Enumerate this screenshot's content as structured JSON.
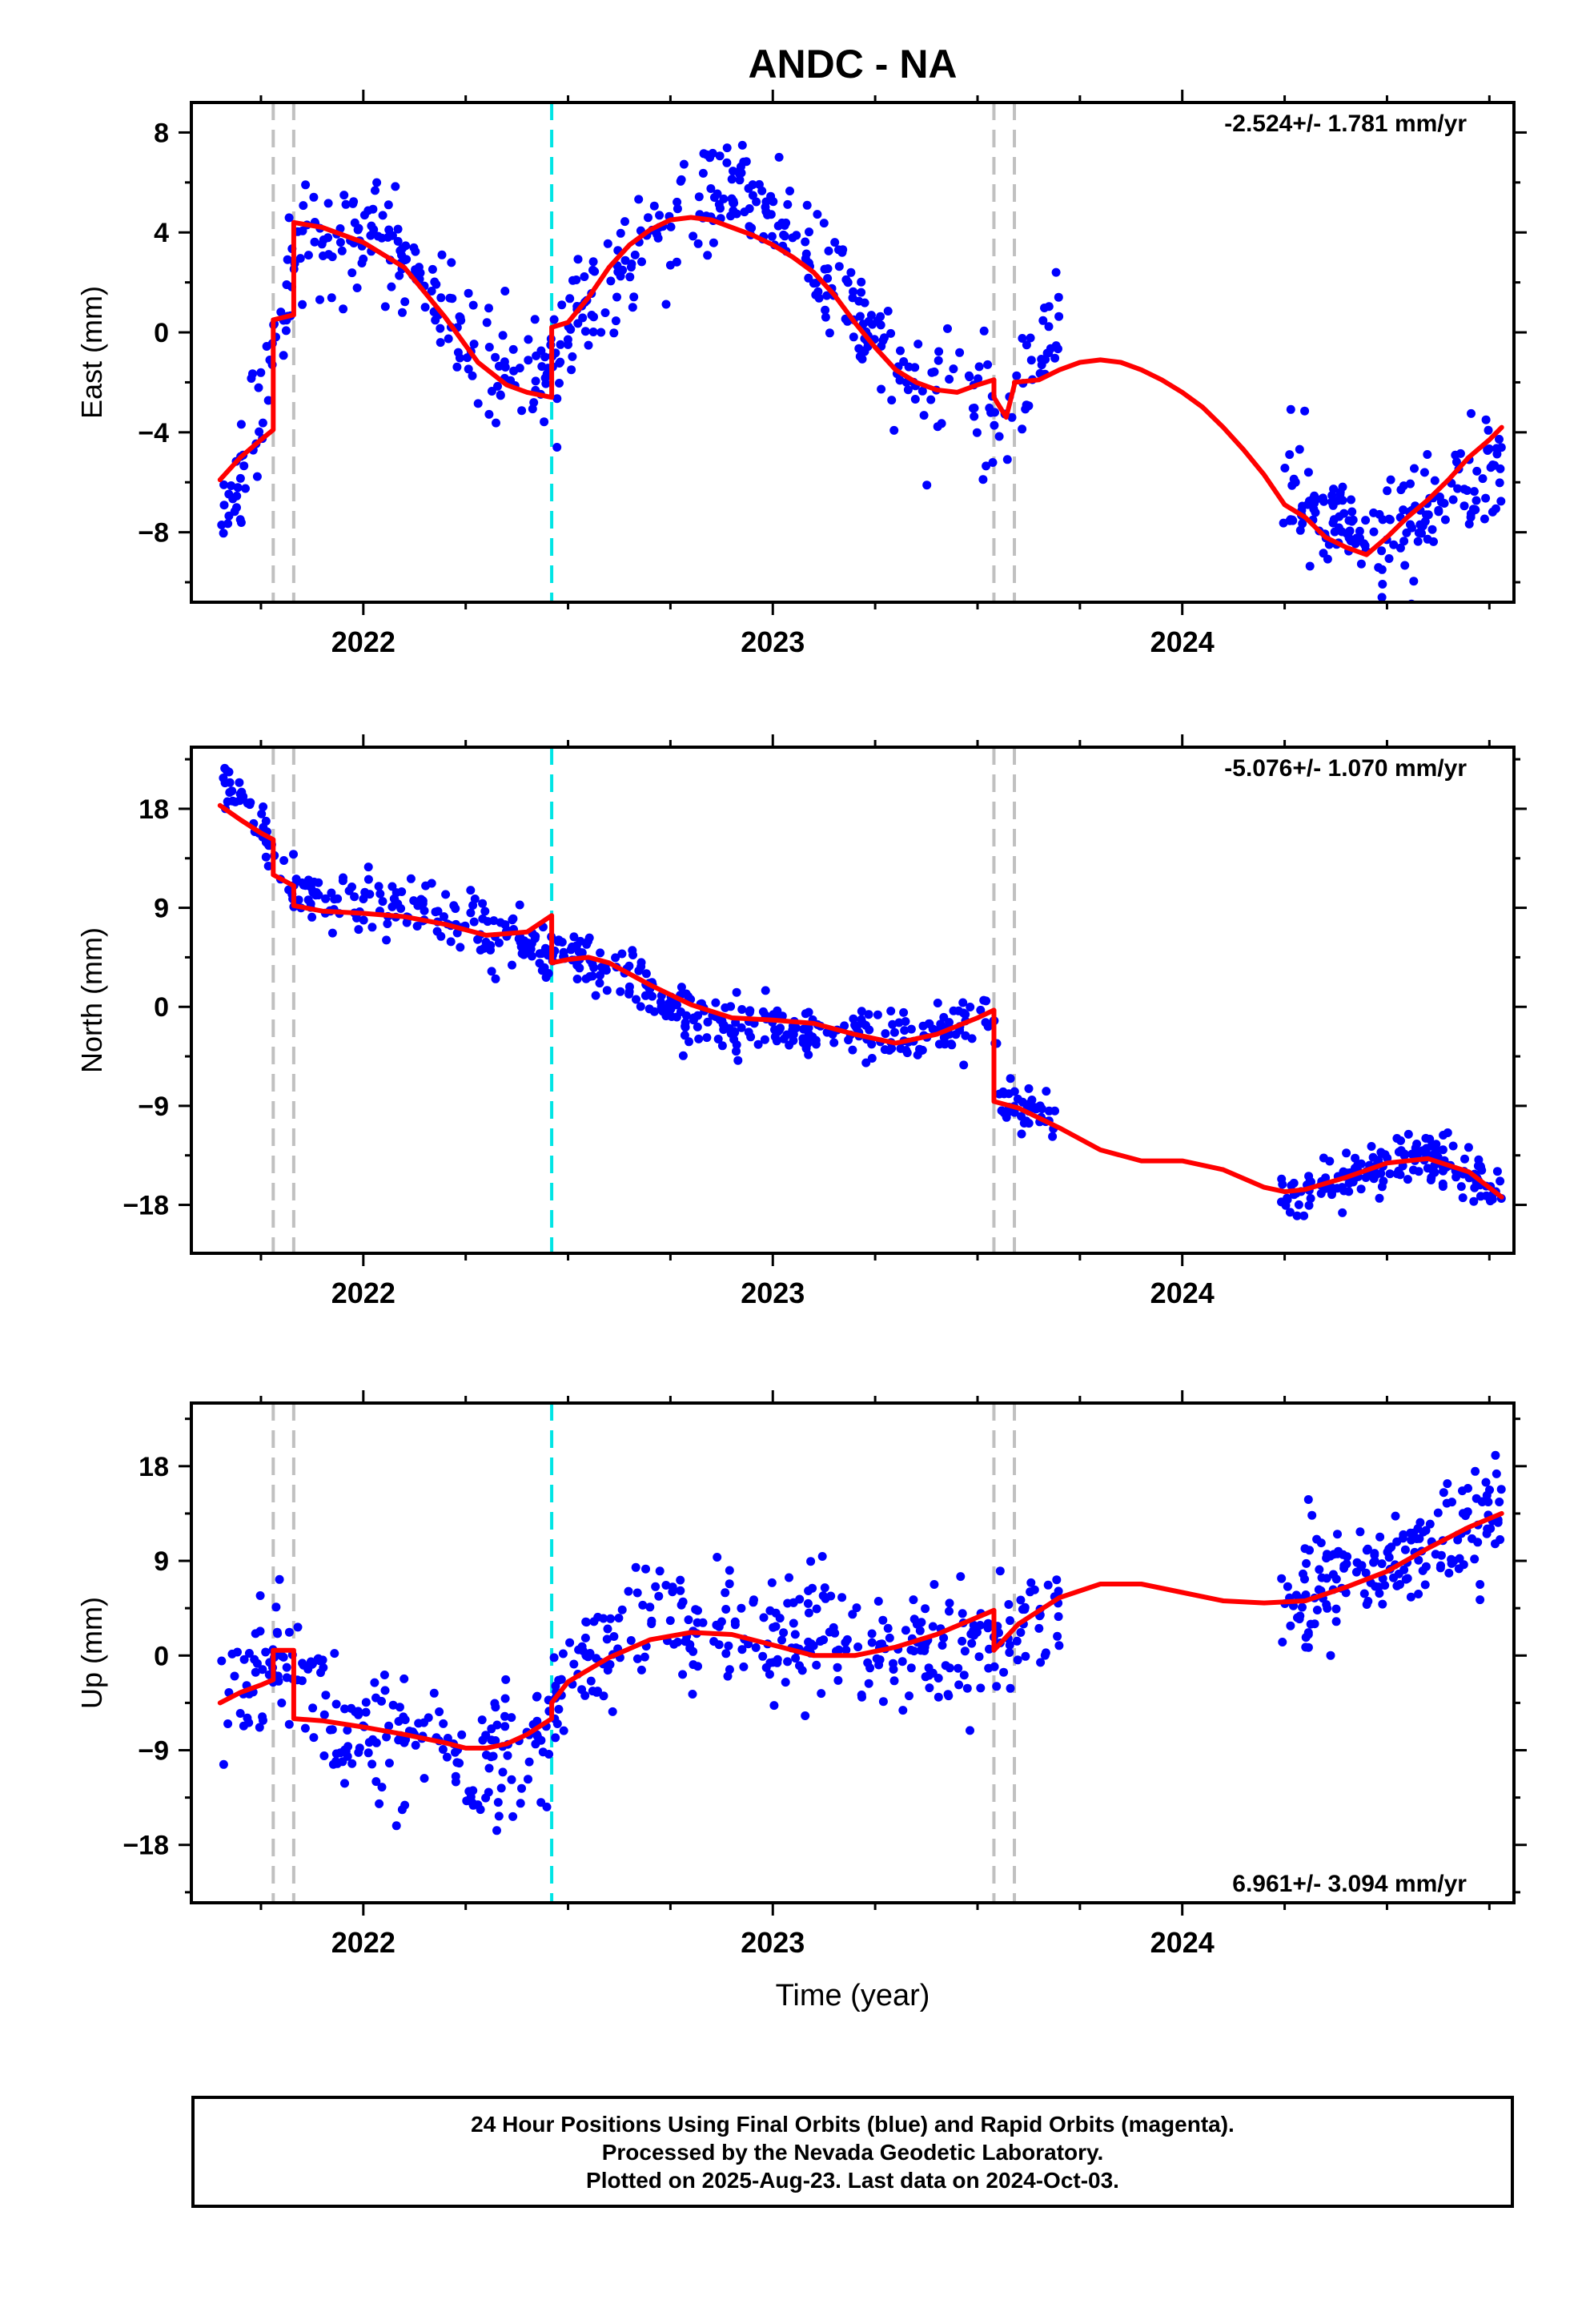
{
  "figure": {
    "title": "ANDC - NA"
  },
  "colors": {
    "final_orbits": "#0000ff",
    "model": "#ff0000",
    "antenna_change": "#c0c0c0",
    "equipment_change": "#00e5e5"
  },
  "footer": {
    "lines": [
      "24 Hour Positions Using Final Orbits (blue) and Rapid Orbits (magenta).",
      "Processed by the Nevada Geodetic Laboratory.",
      "Plotted on 2025-Aug-23. Last data on 2024-Oct-03."
    ]
  },
  "chart_data": [
    {
      "type": "scatter",
      "component": "east",
      "ylabel": "East (mm)",
      "xlabel": "",
      "title": "ANDC - NA",
      "rate_label": "-2.524+/- 1.781 mm/yr",
      "rate_position": "top-right",
      "xlim": [
        2021.58,
        2024.81
      ],
      "ylim": [
        -10.8,
        9.2
      ],
      "xticks": [
        2022,
        2023,
        2024
      ],
      "xtick_labels": [
        "2022",
        "2023",
        "2024"
      ],
      "yticks": [
        -8,
        -4,
        0,
        4,
        8
      ],
      "ytick_labels": [
        "−8",
        "−4",
        "0",
        "4",
        "8"
      ],
      "grid": false,
      "gray_lines": [
        2021.78,
        2021.83,
        2023.54,
        2023.59
      ],
      "cyan_lines": [
        2022.46
      ],
      "gaps": [
        [
          2023.72,
          2024.24
        ]
      ],
      "model": {
        "x": [
          2021.65,
          2021.7,
          2021.75,
          2021.78,
          2021.78,
          2021.83,
          2021.83,
          2021.9,
          2022.0,
          2022.1,
          2022.2,
          2022.28,
          2022.35,
          2022.4,
          2022.46,
          2022.46,
          2022.5,
          2022.55,
          2022.6,
          2022.65,
          2022.7,
          2022.75,
          2022.8,
          2022.85,
          2022.9,
          2022.95,
          2023.0,
          2023.05,
          2023.1,
          2023.15,
          2023.2,
          2023.25,
          2023.3,
          2023.35,
          2023.4,
          2023.45,
          2023.5,
          2023.54,
          2023.54,
          2023.57,
          2023.59,
          2023.59,
          2023.65,
          2023.7,
          2023.75,
          2023.8,
          2023.85,
          2023.9,
          2023.95,
          2024.0,
          2024.05,
          2024.1,
          2024.15,
          2024.2,
          2024.25,
          2024.3,
          2024.35,
          2024.4,
          2024.45,
          2024.5,
          2024.55,
          2024.6,
          2024.65,
          2024.7,
          2024.75,
          2024.78
        ],
        "y": [
          -5.9,
          -5.0,
          -4.3,
          -3.9,
          0.5,
          0.7,
          4.4,
          4.2,
          3.6,
          2.6,
          0.6,
          -1.2,
          -2.1,
          -2.4,
          -2.6,
          0.2,
          0.4,
          1.4,
          2.6,
          3.5,
          4.1,
          4.5,
          4.6,
          4.5,
          4.2,
          3.9,
          3.5,
          3.0,
          2.4,
          1.5,
          0.4,
          -0.6,
          -1.5,
          -2.0,
          -2.3,
          -2.4,
          -2.1,
          -1.9,
          -2.6,
          -3.4,
          -2.1,
          -2.0,
          -1.9,
          -1.5,
          -1.2,
          -1.1,
          -1.2,
          -1.5,
          -1.9,
          -2.4,
          -3.0,
          -3.8,
          -4.7,
          -5.7,
          -6.9,
          -7.4,
          -8.2,
          -8.6,
          -8.9,
          -8.2,
          -7.4,
          -6.7,
          -5.9,
          -5.0,
          -4.3,
          -3.8
        ]
      },
      "anchors": {
        "x": [
          2021.65,
          2021.7,
          2021.75,
          2021.78,
          2021.85,
          2022.0,
          2022.1,
          2022.2,
          2022.3,
          2022.4,
          2022.46,
          2022.55,
          2022.65,
          2022.8,
          2022.9,
          2023.0,
          2023.1,
          2023.2,
          2023.3,
          2023.4,
          2023.5,
          2023.55,
          2023.6,
          2023.65,
          2023.7
        ],
        "y": [
          -7.5,
          -5.5,
          -3.0,
          0.0,
          3.5,
          3.8,
          2.8,
          1.2,
          -1.3,
          -2.0,
          -1.2,
          1.0,
          3.0,
          5.2,
          6.0,
          5.0,
          3.0,
          1.0,
          -1.5,
          -2.5,
          -2.5,
          -3.8,
          -2.0,
          -0.5,
          0.5
        ]
      },
      "anchors2": {
        "x": [
          2024.24,
          2024.3,
          2024.4,
          2024.5,
          2024.6,
          2024.7,
          2024.78
        ],
        "y": [
          -5.0,
          -6.8,
          -8.0,
          -8.3,
          -7.5,
          -6.0,
          -5.0
        ]
      },
      "scatter_sigma": 1.1,
      "n_points": 700,
      "series": [
        {
          "name": "Final Orbits",
          "color": "#0000ff"
        }
      ]
    },
    {
      "type": "scatter",
      "component": "north",
      "ylabel": "North (mm)",
      "xlabel": "",
      "rate_label": "-5.076+/- 1.070 mm/yr",
      "rate_position": "top-right",
      "xlim": [
        2021.58,
        2024.81
      ],
      "ylim": [
        -22.4,
        23.6
      ],
      "xticks": [
        2022,
        2023,
        2024
      ],
      "xtick_labels": [
        "2022",
        "2023",
        "2024"
      ],
      "yticks": [
        -18,
        -9,
        0,
        9,
        18
      ],
      "ytick_labels": [
        "−18",
        "−9",
        "0",
        "9",
        "18"
      ],
      "grid": false,
      "gray_lines": [
        2021.78,
        2021.83,
        2023.54,
        2023.59
      ],
      "cyan_lines": [
        2022.46
      ],
      "gaps": [
        [
          2023.72,
          2024.24
        ]
      ],
      "model": {
        "x": [
          2021.65,
          2021.7,
          2021.75,
          2021.78,
          2021.78,
          2021.83,
          2021.83,
          2021.9,
          2022.0,
          2022.1,
          2022.2,
          2022.3,
          2022.4,
          2022.46,
          2022.46,
          2022.5,
          2022.55,
          2022.6,
          2022.7,
          2022.8,
          2022.9,
          2023.0,
          2023.1,
          2023.2,
          2023.3,
          2023.4,
          2023.5,
          2023.54,
          2023.54,
          2023.6,
          2023.7,
          2023.8,
          2023.9,
          2024.0,
          2024.1,
          2024.2,
          2024.25,
          2024.3,
          2024.4,
          2024.5,
          2024.6,
          2024.7,
          2024.78
        ],
        "y": [
          18.3,
          17.0,
          15.8,
          15.2,
          12.0,
          11.0,
          9.2,
          8.7,
          8.5,
          8.2,
          7.5,
          6.5,
          6.8,
          8.3,
          4.0,
          4.3,
          4.5,
          4.0,
          2.0,
          0.2,
          -1.0,
          -1.2,
          -1.5,
          -2.5,
          -3.3,
          -2.5,
          -1.0,
          -0.3,
          -8.6,
          -9.2,
          -11.0,
          -13.0,
          -14.0,
          -14.0,
          -14.8,
          -16.4,
          -16.8,
          -16.6,
          -15.5,
          -14.2,
          -13.8,
          -15.0,
          -17.3
        ]
      },
      "anchors": {
        "x": [
          2021.65,
          2021.75,
          2021.78,
          2021.85,
          2022.0,
          2022.1,
          2022.2,
          2022.3,
          2022.4,
          2022.46,
          2022.5,
          2022.6,
          2022.7,
          2022.8,
          2022.9,
          2023.0,
          2023.1,
          2023.2,
          2023.3,
          2023.4,
          2023.5,
          2023.54,
          2023.56,
          2023.62,
          2023.7
        ],
        "y": [
          21.0,
          17.0,
          14.0,
          10.0,
          9.5,
          8.5,
          8.0,
          7.0,
          5.5,
          5.0,
          4.5,
          3.5,
          1.5,
          -1.0,
          -2.0,
          -2.0,
          -2.5,
          -2.5,
          -3.0,
          -2.5,
          -0.5,
          -0.5,
          -8.0,
          -9.5,
          -11.0
        ]
      },
      "anchors2": {
        "x": [
          2024.24,
          2024.3,
          2024.4,
          2024.5,
          2024.6,
          2024.7,
          2024.78
        ],
        "y": [
          -17.0,
          -16.5,
          -15.3,
          -14.0,
          -13.7,
          -15.0,
          -17.0
        ]
      },
      "scatter_sigma": 1.3,
      "n_points": 700,
      "series": [
        {
          "name": "Final Orbits",
          "color": "#0000ff"
        }
      ]
    },
    {
      "type": "scatter",
      "component": "up",
      "ylabel": "Up (mm)",
      "xlabel": "Time (year)",
      "rate_label": "6.961+/- 3.094 mm/yr",
      "rate_position": "bottom-right",
      "xlim": [
        2021.58,
        2024.81
      ],
      "ylim": [
        -23.5,
        24.0
      ],
      "xticks": [
        2022,
        2023,
        2024
      ],
      "xtick_labels": [
        "2022",
        "2023",
        "2024"
      ],
      "yticks": [
        -18,
        -9,
        0,
        9,
        18
      ],
      "ytick_labels": [
        "−18",
        "−9",
        "0",
        "9",
        "18"
      ],
      "grid": false,
      "gray_lines": [
        2021.78,
        2021.83,
        2023.54,
        2023.59
      ],
      "cyan_lines": [
        2022.46
      ],
      "gaps": [
        [
          2023.72,
          2024.24
        ]
      ],
      "model": {
        "x": [
          2021.65,
          2021.7,
          2021.75,
          2021.78,
          2021.78,
          2021.83,
          2021.83,
          2021.9,
          2022.0,
          2022.1,
          2022.2,
          2022.25,
          2022.3,
          2022.35,
          2022.4,
          2022.46,
          2022.46,
          2022.5,
          2022.6,
          2022.7,
          2022.8,
          2022.9,
          2023.0,
          2023.1,
          2023.2,
          2023.3,
          2023.4,
          2023.54,
          2023.54,
          2023.6,
          2023.7,
          2023.8,
          2023.9,
          2024.0,
          2024.1,
          2024.2,
          2024.3,
          2024.4,
          2024.5,
          2024.6,
          2024.7,
          2024.78
        ],
        "y": [
          -4.5,
          -3.5,
          -2.8,
          -2.3,
          0.5,
          0.5,
          -6.0,
          -6.2,
          -6.8,
          -7.5,
          -8.3,
          -8.8,
          -8.8,
          -8.4,
          -7.5,
          -6.0,
          -4.5,
          -2.5,
          -0.2,
          1.5,
          2.2,
          2.0,
          1.0,
          0.0,
          0.0,
          0.8,
          2.0,
          4.3,
          0.5,
          3.0,
          5.5,
          6.8,
          6.8,
          6.0,
          5.2,
          5.0,
          5.2,
          6.5,
          8.0,
          10.2,
          12.2,
          13.5
        ]
      },
      "anchors": {
        "x": [
          2021.65,
          2021.75,
          2021.8,
          2021.9,
          2022.0,
          2022.1,
          2022.2,
          2022.3,
          2022.4,
          2022.46,
          2022.55,
          2022.65,
          2022.75,
          2022.85,
          2022.95,
          2023.05,
          2023.15,
          2023.25,
          2023.35,
          2023.45,
          2023.55,
          2023.62,
          2023.7
        ],
        "y": [
          -3.0,
          -1.0,
          1.0,
          -5.0,
          -7.5,
          -8.0,
          -9.0,
          -10.0,
          -8.0,
          -4.0,
          -1.0,
          2.5,
          3.5,
          2.0,
          1.5,
          2.5,
          1.5,
          0.0,
          0.5,
          1.0,
          1.5,
          3.0,
          4.5
        ]
      },
      "anchors2": {
        "x": [
          2024.24,
          2024.3,
          2024.4,
          2024.5,
          2024.6,
          2024.7,
          2024.78
        ],
        "y": [
          5.0,
          6.0,
          8.0,
          8.5,
          10.0,
          12.0,
          14.0
        ]
      },
      "scatter_sigma": 2.9,
      "n_points": 720,
      "series": [
        {
          "name": "Final Orbits",
          "color": "#0000ff"
        }
      ]
    }
  ]
}
